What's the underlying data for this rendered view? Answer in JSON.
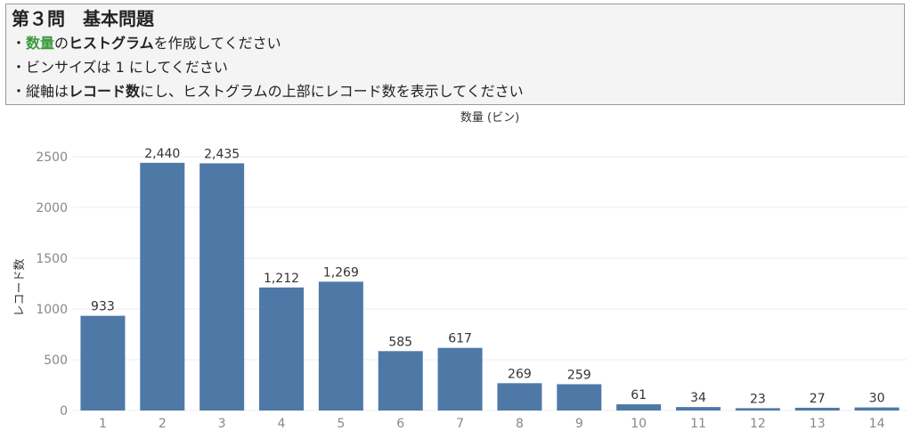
{
  "task": {
    "title": "第３問　基本問題",
    "line1": {
      "bullet": "・",
      "green": "数量",
      "mid": "の",
      "bold": "ヒストグラム",
      "tail": "を作成してください"
    },
    "line2": {
      "bullet": "・",
      "text": "ビンサイズは 1 にしてください"
    },
    "line3": {
      "bullet": "・",
      "pre": "縦軸は",
      "bold": "レコード数",
      "tail": "にし、ヒストグラムの上部にレコード数を表示してください"
    }
  },
  "chart_data": {
    "type": "bar",
    "title": "数量 (ビン)",
    "xlabel": "",
    "ylabel": "レコード数",
    "categories": [
      "1",
      "2",
      "3",
      "4",
      "5",
      "6",
      "7",
      "8",
      "9",
      "10",
      "11",
      "12",
      "13",
      "14"
    ],
    "values": [
      933,
      2440,
      2435,
      1212,
      1269,
      585,
      617,
      269,
      259,
      61,
      34,
      23,
      27,
      30
    ],
    "value_labels": [
      "933",
      "2,440",
      "2,435",
      "1,212",
      "1,269",
      "585",
      "617",
      "269",
      "259",
      "61",
      "34",
      "23",
      "27",
      "30"
    ],
    "ylim": [
      0,
      2600
    ],
    "yticks": [
      0,
      500,
      1000,
      1500,
      2000,
      2500
    ],
    "grid": true,
    "bar_color": "#4e79a7"
  }
}
